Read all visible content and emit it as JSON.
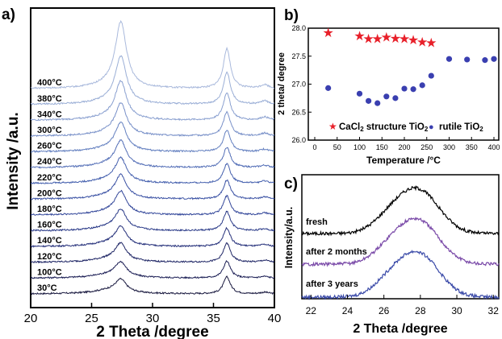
{
  "chart_data": [
    {
      "panel_label": "a)",
      "type": "line",
      "xlabel": "2 Theta /degree",
      "ylabel": "Intensity /a.u.",
      "xlim": [
        20,
        40
      ],
      "xticks": [
        20,
        25,
        30,
        35,
        40
      ],
      "peaks": [
        {
          "x": 27.4,
          "width": 0.55
        },
        {
          "x": 36.1,
          "width": 0.35
        },
        {
          "x": 39.2,
          "width": 0.4
        }
      ],
      "series": [
        {
          "name": "30°C",
          "color": "#1a1a40",
          "peak_heights": [
            0.4,
            0.55,
            0.05
          ]
        },
        {
          "name": "100°C",
          "color": "#1c1f55",
          "peak_heights": [
            0.45,
            0.55,
            0.05
          ]
        },
        {
          "name": "120°C",
          "color": "#202766",
          "peak_heights": [
            0.55,
            0.62,
            0.06
          ]
        },
        {
          "name": "140°C",
          "color": "#25307a",
          "peak_heights": [
            0.58,
            0.6,
            0.06
          ]
        },
        {
          "name": "160°C",
          "color": "#2a3a88",
          "peak_heights": [
            0.62,
            0.62,
            0.06
          ]
        },
        {
          "name": "180°C",
          "color": "#33479a",
          "peak_heights": [
            0.7,
            0.62,
            0.06
          ]
        },
        {
          "name": "200°C",
          "color": "#3b52a4",
          "peak_heights": [
            0.72,
            0.62,
            0.07
          ]
        },
        {
          "name": "220°C",
          "color": "#4560ae",
          "peak_heights": [
            0.76,
            0.64,
            0.07
          ]
        },
        {
          "name": "240°C",
          "color": "#546fb7",
          "peak_heights": [
            0.8,
            0.66,
            0.07
          ]
        },
        {
          "name": "260°C",
          "color": "#6480c0",
          "peak_heights": [
            0.88,
            0.7,
            0.08
          ]
        },
        {
          "name": "300°C",
          "color": "#7890c8",
          "peak_heights": [
            1.0,
            0.78,
            0.09
          ]
        },
        {
          "name": "340°C",
          "color": "#8aa0d0",
          "peak_heights": [
            1.2,
            0.9,
            0.1
          ]
        },
        {
          "name": "380°C",
          "color": "#9aaed6",
          "peak_heights": [
            1.5,
            1.05,
            0.11
          ]
        },
        {
          "name": "400°C",
          "color": "#a9b9dc",
          "peak_heights": [
            2.1,
            1.3,
            0.12
          ]
        }
      ]
    },
    {
      "panel_label": "b)",
      "type": "scatter",
      "xlabel": "Temperature /°C",
      "ylabel": "2 theta/ degree",
      "xlim": [
        0,
        400
      ],
      "ylim": [
        26.0,
        28.0
      ],
      "xticks": [
        0,
        50,
        100,
        150,
        200,
        250,
        300,
        350,
        400
      ],
      "yticks": [
        "26.0",
        "26.5",
        "27.0",
        "27.5",
        "28.0"
      ],
      "series": [
        {
          "name": "CaCl2 structure TiO2",
          "marker": "star",
          "color": "#e8202a",
          "x": [
            30,
            100,
            120,
            140,
            160,
            180,
            200,
            220,
            240,
            260
          ],
          "y": [
            27.93,
            27.87,
            27.82,
            27.82,
            27.85,
            27.83,
            27.82,
            27.8,
            27.76,
            27.75
          ]
        },
        {
          "name": "rutile TiO2",
          "marker": "circle",
          "color": "#3a3fb0",
          "x": [
            30,
            100,
            120,
            140,
            160,
            180,
            200,
            220,
            240,
            260,
            300,
            340,
            380,
            400
          ],
          "y": [
            26.93,
            26.83,
            26.7,
            26.66,
            26.78,
            26.75,
            26.92,
            26.91,
            26.98,
            27.15,
            27.45,
            27.44,
            27.43,
            27.45
          ]
        }
      ],
      "legend": [
        {
          "symbol": "★",
          "label_main": "CaCl",
          "label_sub": "2",
          "label_rest": " structure TiO",
          "label_sub2": "2"
        },
        {
          "symbol": "●",
          "label_main": "rutile TiO",
          "label_sub": "2"
        }
      ]
    },
    {
      "panel_label": "c)",
      "type": "line",
      "xlabel": "2 Theta /degree",
      "ylabel": "Intensity/a.u.",
      "xlim": [
        21.5,
        32.3
      ],
      "xticks": [
        22,
        24,
        26,
        28,
        30,
        32
      ],
      "peak": {
        "x": 27.9,
        "width": 1.6
      },
      "series": [
        {
          "name": "fresh",
          "color": "#000000",
          "baseline": 0.0,
          "height": 1.0
        },
        {
          "name": "after 2 months",
          "color": "#7a4aa8",
          "baseline": 0.0,
          "height": 1.0
        },
        {
          "name": "after 3 years",
          "color": "#3a4aa8",
          "baseline": 0.0,
          "height": 1.0
        }
      ]
    }
  ]
}
